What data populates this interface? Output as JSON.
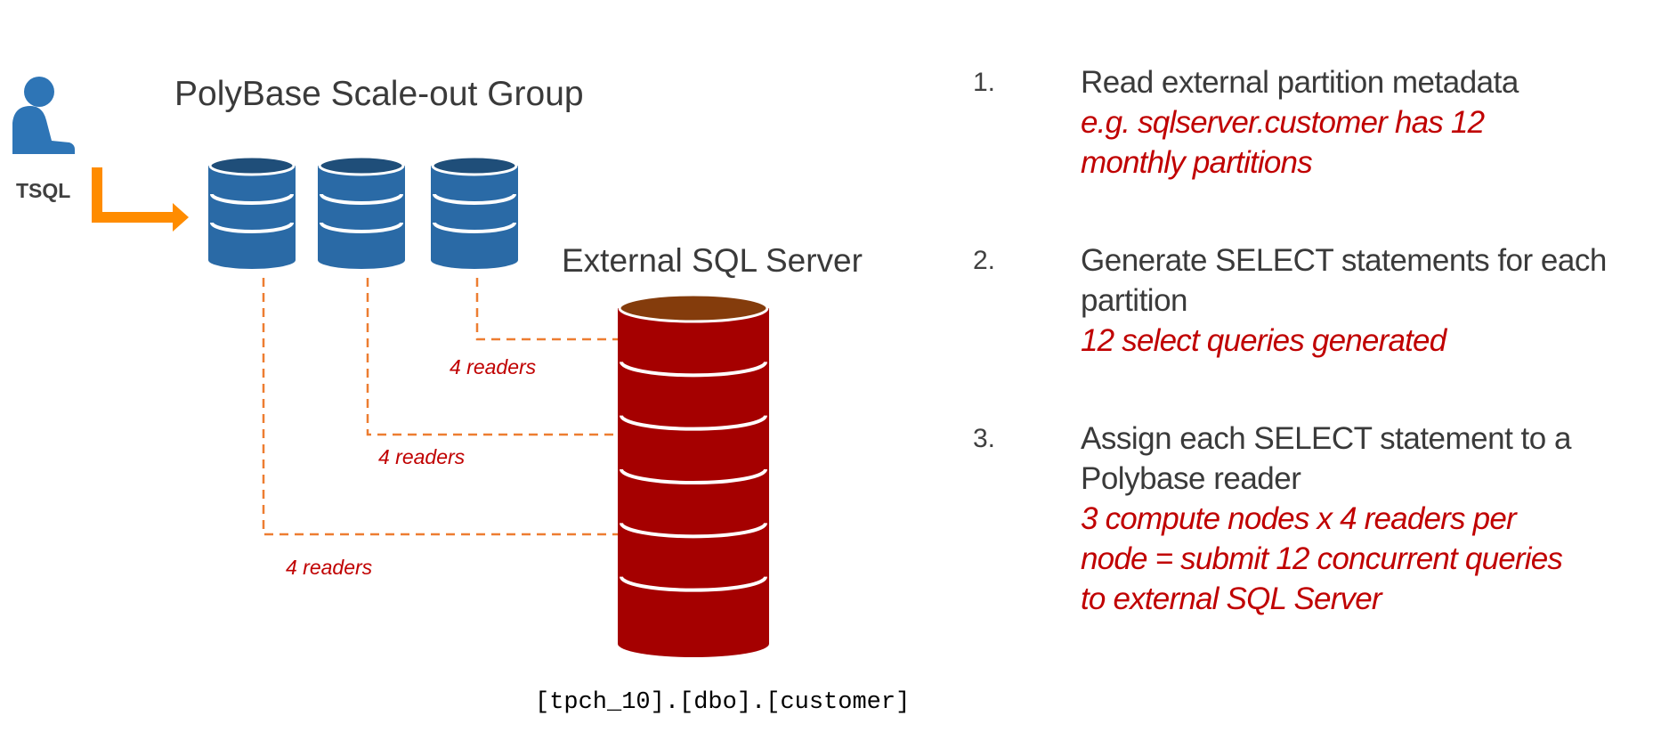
{
  "diagram": {
    "user_label": "TSQL",
    "group_title": "PolyBase Scale-out Group",
    "external_title": "External SQL Server",
    "reader_labels": [
      "4 readers",
      "4 readers",
      "4 readers"
    ],
    "table_name": "[tpch_10].[dbo].[customer]",
    "compute_node_count": 3,
    "icons": [
      "user-icon",
      "arrow-icon",
      "database-icon"
    ],
    "colors": {
      "compute_node": "#2a6aa6",
      "compute_node_top": "#1f4e79",
      "external_db": "#a50000",
      "external_db_top": "#843c0c",
      "arrow": "#ff8c00",
      "connector": "#ed7d31",
      "note_text": "#c00000"
    }
  },
  "steps": [
    {
      "number": "1.",
      "text": "Read external partition metadata",
      "note": "e.g. sqlserver.customer has 12 monthly partitions"
    },
    {
      "number": "2.",
      "text": "Generate SELECT statements for each partition",
      "note": "12 select queries generated"
    },
    {
      "number": "3.",
      "text": "Assign each SELECT statement to a Polybase reader",
      "note": "3 compute nodes x 4 readers per node = submit 12 concurrent queries to external SQL Server"
    }
  ]
}
